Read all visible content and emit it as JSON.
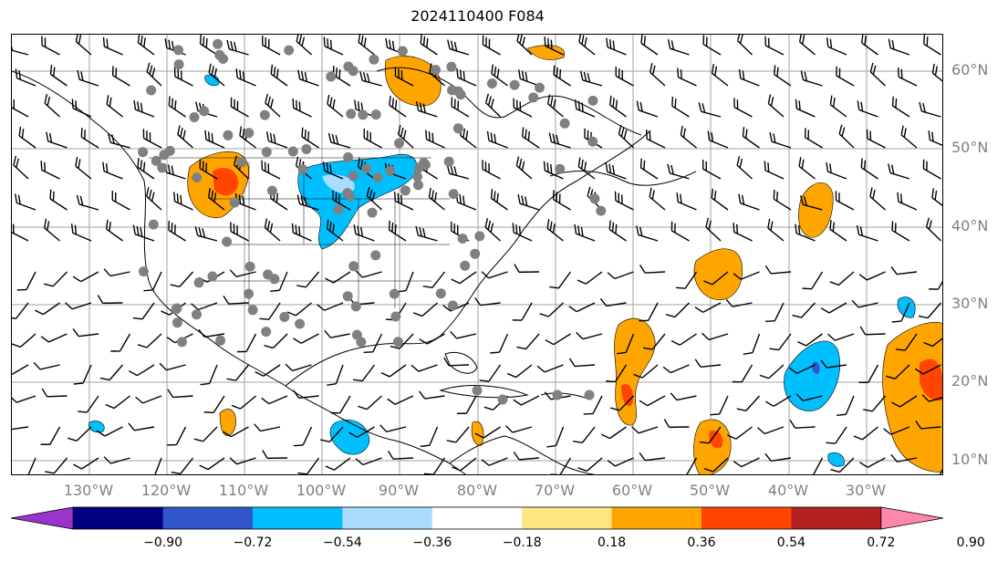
{
  "title": "2024110400 F084",
  "map": {
    "lat_labels": [
      "60°N",
      "50°N",
      "40°N",
      "30°N",
      "20°N",
      "10°N"
    ],
    "lon_labels": [
      "130°W",
      "120°W",
      "110°W",
      "100°W",
      "90°W",
      "80°W",
      "70°W",
      "60°W",
      "50°W",
      "40°W",
      "30°W"
    ],
    "gridline_color": "#a0a0a0",
    "label_color": "#808080"
  },
  "colorbar": {
    "ticks": [
      "−0.90",
      "−0.72",
      "−0.54",
      "−0.36",
      "−0.18",
      "0.18",
      "0.36",
      "0.54",
      "0.72",
      "0.90"
    ],
    "colors": [
      "#9933cc",
      "#000080",
      "#3355cc",
      "#00bfff",
      "#aadcff",
      "#ffffff",
      "#ffe680",
      "#ffa500",
      "#ff4500",
      "#b22222",
      "#ff88aa"
    ],
    "extend": "both"
  }
}
